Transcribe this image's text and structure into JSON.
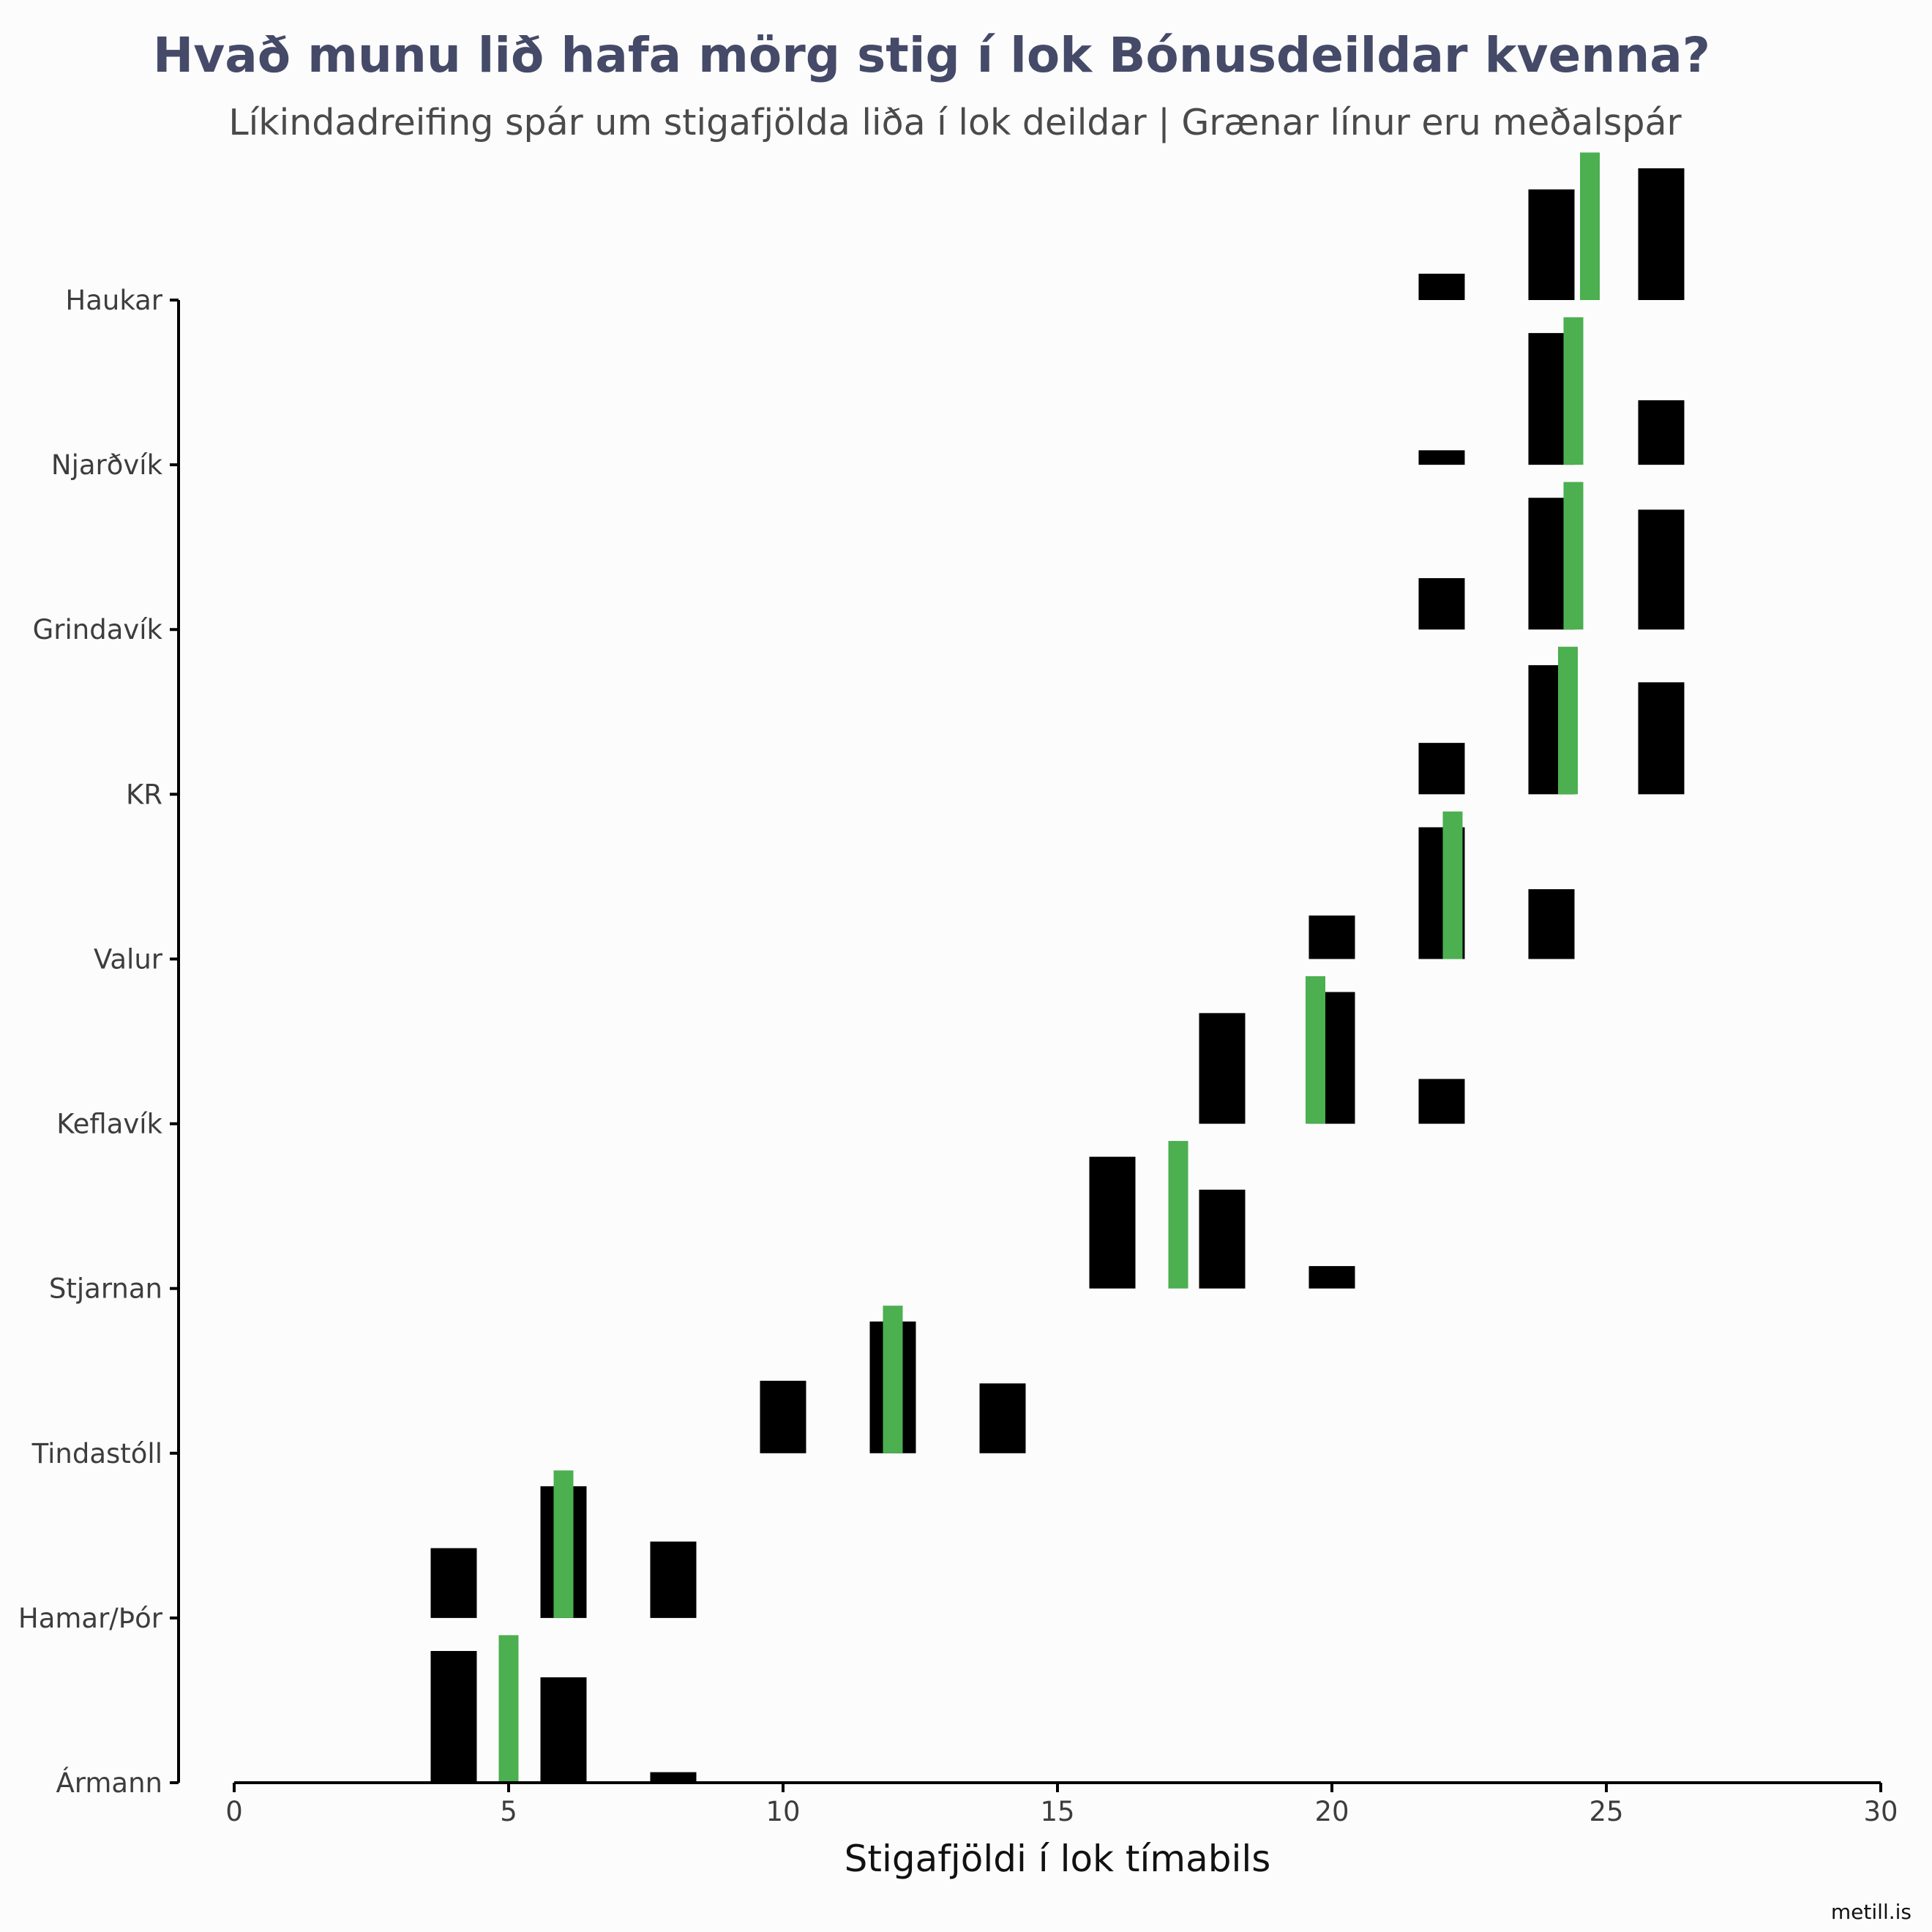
{
  "chart_data": {
    "type": "bar",
    "title": "Hvað munu lið hafa mörg stig í lok Bónusdeildar kvenna?",
    "subtitle": "Líkindadreifing spár um stigafjölda liða í lok deildar | Grænar línur eru meðalspár",
    "xlabel": "Stigafjöldi í lok tímabils",
    "ylabel": "",
    "caption": "metill.is",
    "xlim": [
      0,
      30
    ],
    "x_ticks": [
      0,
      5,
      10,
      15,
      20,
      25,
      30
    ],
    "mean_line_color": "#4caf50",
    "bar_color": "#000000",
    "teams": [
      {
        "name": "Haukar",
        "mean": 24.7,
        "bins": [
          {
            "x": 22,
            "p": 0.2
          },
          {
            "x": 24,
            "p": 0.84
          },
          {
            "x": 26,
            "p": 1.0
          }
        ]
      },
      {
        "name": "Njarðvík",
        "mean": 24.4,
        "bins": [
          {
            "x": 22,
            "p": 0.11
          },
          {
            "x": 24,
            "p": 1.0
          },
          {
            "x": 26,
            "p": 0.49
          }
        ]
      },
      {
        "name": "Grindavík",
        "mean": 24.4,
        "bins": [
          {
            "x": 22,
            "p": 0.39
          },
          {
            "x": 24,
            "p": 1.0
          },
          {
            "x": 26,
            "p": 0.91
          }
        ]
      },
      {
        "name": "KR",
        "mean": 24.3,
        "bins": [
          {
            "x": 22,
            "p": 0.39
          },
          {
            "x": 24,
            "p": 0.98
          },
          {
            "x": 26,
            "p": 0.85
          }
        ]
      },
      {
        "name": "Valur",
        "mean": 22.2,
        "bins": [
          {
            "x": 20,
            "p": 0.33
          },
          {
            "x": 22,
            "p": 1.0
          },
          {
            "x": 24,
            "p": 0.53
          }
        ]
      },
      {
        "name": "Keflavík",
        "mean": 19.7,
        "bins": [
          {
            "x": 18,
            "p": 0.84
          },
          {
            "x": 20,
            "p": 1.0
          },
          {
            "x": 22,
            "p": 0.34
          }
        ]
      },
      {
        "name": "Stjarnan",
        "mean": 17.2,
        "bins": [
          {
            "x": 16,
            "p": 1.0
          },
          {
            "x": 18,
            "p": 0.75
          },
          {
            "x": 20,
            "p": 0.17
          }
        ]
      },
      {
        "name": "Tindastóll",
        "mean": 12.0,
        "bins": [
          {
            "x": 10,
            "p": 0.55
          },
          {
            "x": 12,
            "p": 1.0
          },
          {
            "x": 14,
            "p": 0.53
          }
        ]
      },
      {
        "name": "Hamar/Þór",
        "mean": 6.0,
        "bins": [
          {
            "x": 4,
            "p": 0.53
          },
          {
            "x": 6,
            "p": 1.0
          },
          {
            "x": 8,
            "p": 0.58
          }
        ]
      },
      {
        "name": "Ármann",
        "mean": 5.0,
        "bins": [
          {
            "x": 4,
            "p": 1.0
          },
          {
            "x": 6,
            "p": 0.8
          },
          {
            "x": 8,
            "p": 0.08
          }
        ]
      }
    ]
  }
}
